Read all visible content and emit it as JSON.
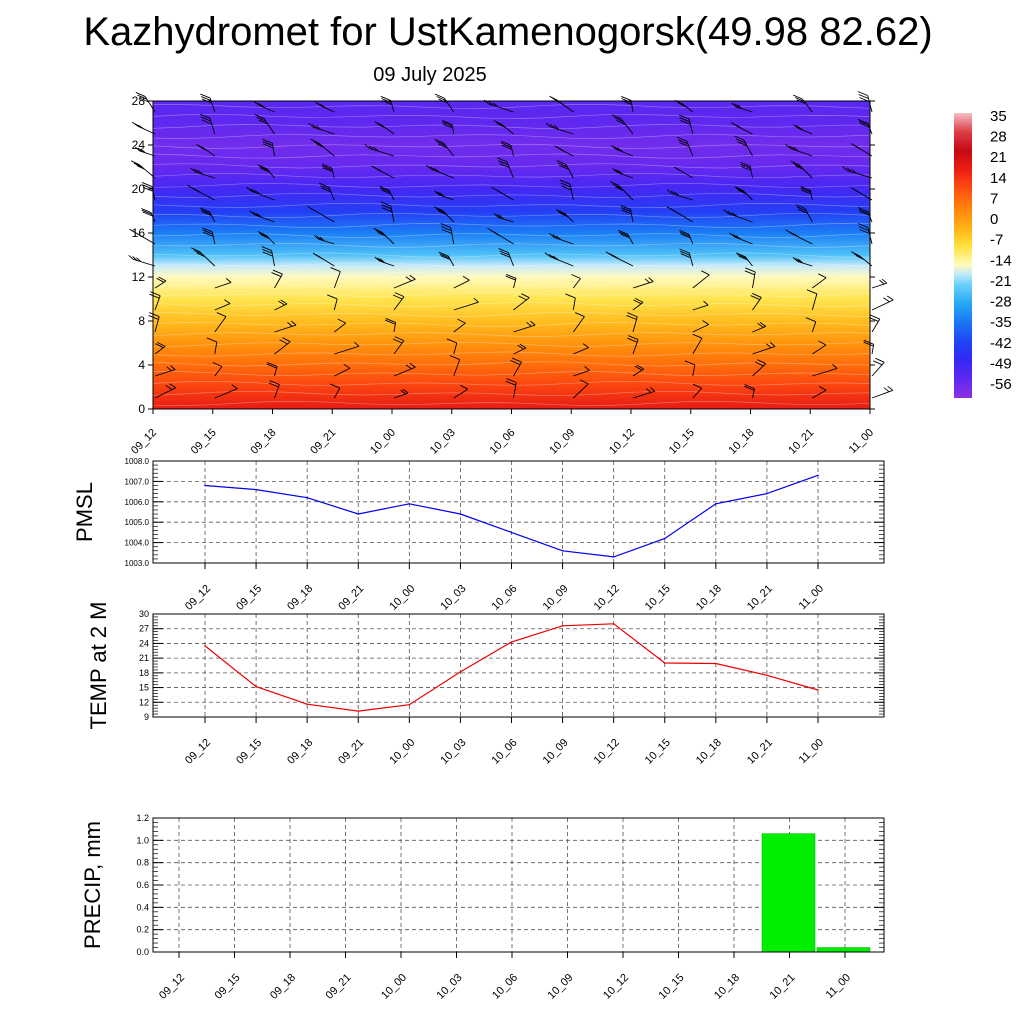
{
  "title": "Kazhydromet for UstKamenogorsk(49.98 82.62)",
  "subtitle": "09 July 2025",
  "colors": {
    "pmsl_line": "#0000ee",
    "temp_line": "#ee0000",
    "precip_bar": "#00ee00",
    "precip_bar_edge": "#00aa00",
    "grid": "#555555",
    "wind_barb": "#000000"
  },
  "chart_data": [
    {
      "id": "cross-section",
      "type": "heatmap",
      "title": "",
      "x_ticks": [
        "09_12",
        "09_15",
        "09_18",
        "09_21",
        "10_00",
        "10_03",
        "10_06",
        "10_09",
        "10_12",
        "10_15",
        "10_18",
        "10_21",
        "11_00"
      ],
      "y_ticks": [
        0,
        4,
        8,
        12,
        16,
        20,
        24,
        28
      ],
      "ylim": [
        0,
        28
      ],
      "colorbar_labels": [
        "35",
        "28",
        "21",
        "14",
        "7",
        "0",
        "-7",
        "-14",
        "-21",
        "-28",
        "-35",
        "-42",
        "-49",
        "-56"
      ],
      "colorbar_range": [
        -63,
        42
      ],
      "temperature_profile": [
        {
          "level": 0,
          "value": 22
        },
        {
          "level": 2,
          "value": 16
        },
        {
          "level": 4,
          "value": 10
        },
        {
          "level": 6,
          "value": 4
        },
        {
          "level": 8,
          "value": -2
        },
        {
          "level": 10,
          "value": -8
        },
        {
          "level": 12,
          "value": -14
        },
        {
          "level": 13,
          "value": -17
        },
        {
          "level": 14,
          "value": -24
        },
        {
          "level": 16,
          "value": -34
        },
        {
          "level": 18,
          "value": -44
        },
        {
          "level": 20,
          "value": -52
        },
        {
          "level": 22,
          "value": -57
        },
        {
          "level": 24,
          "value": -59
        },
        {
          "level": 26,
          "value": -56
        },
        {
          "level": 28,
          "value": -55
        }
      ],
      "wind_barbs": "yes"
    },
    {
      "id": "pmsl",
      "type": "line",
      "ylabel": "PMSL",
      "x": [
        "09_12",
        "09_15",
        "09_18",
        "09_21",
        "10_00",
        "10_03",
        "10_06",
        "10_09",
        "10_12",
        "10_15",
        "10_18",
        "10_21",
        "11_00"
      ],
      "y": [
        1006.8,
        1006.6,
        1006.2,
        1005.4,
        1005.9,
        1005.4,
        1004.5,
        1003.6,
        1003.3,
        1004.2,
        1005.9,
        1006.4,
        1007.3
      ],
      "ylim": [
        1003.0,
        1008.0
      ],
      "y_ticks": [
        "1003.0",
        "1004.0",
        "1005.0",
        "1006.0",
        "1007.0",
        "1008.0"
      ],
      "grid": true
    },
    {
      "id": "temp",
      "type": "line",
      "ylabel": "TEMP at 2 M",
      "x": [
        "09_12",
        "09_15",
        "09_18",
        "09_21",
        "10_00",
        "10_03",
        "10_06",
        "10_09",
        "10_12",
        "10_15",
        "10_18",
        "10_21",
        "11_00"
      ],
      "y": [
        23.5,
        15.2,
        11.6,
        10.2,
        11.5,
        18.2,
        24.3,
        27.6,
        28.0,
        20.0,
        19.9,
        17.5,
        14.5
      ],
      "ylim": [
        9,
        30
      ],
      "y_ticks": [
        "9",
        "12",
        "15",
        "18",
        "21",
        "24",
        "27",
        "30"
      ],
      "grid": true
    },
    {
      "id": "precip",
      "type": "bar",
      "ylabel": "PRECIP, mm",
      "x": [
        "09_12",
        "09_15",
        "09_18",
        "09_21",
        "10_00",
        "10_03",
        "10_06",
        "10_09",
        "10_12",
        "10_15",
        "10_18",
        "10_21",
        "11_00"
      ],
      "values": [
        0,
        0,
        0,
        0,
        0,
        0,
        0,
        0,
        0,
        0,
        0,
        1.06,
        0.04
      ],
      "ylim": [
        0,
        1.2
      ],
      "y_ticks": [
        "0.0",
        "0.2",
        "0.4",
        "0.6",
        "0.8",
        "1.0",
        "1.2"
      ],
      "grid": true
    }
  ]
}
